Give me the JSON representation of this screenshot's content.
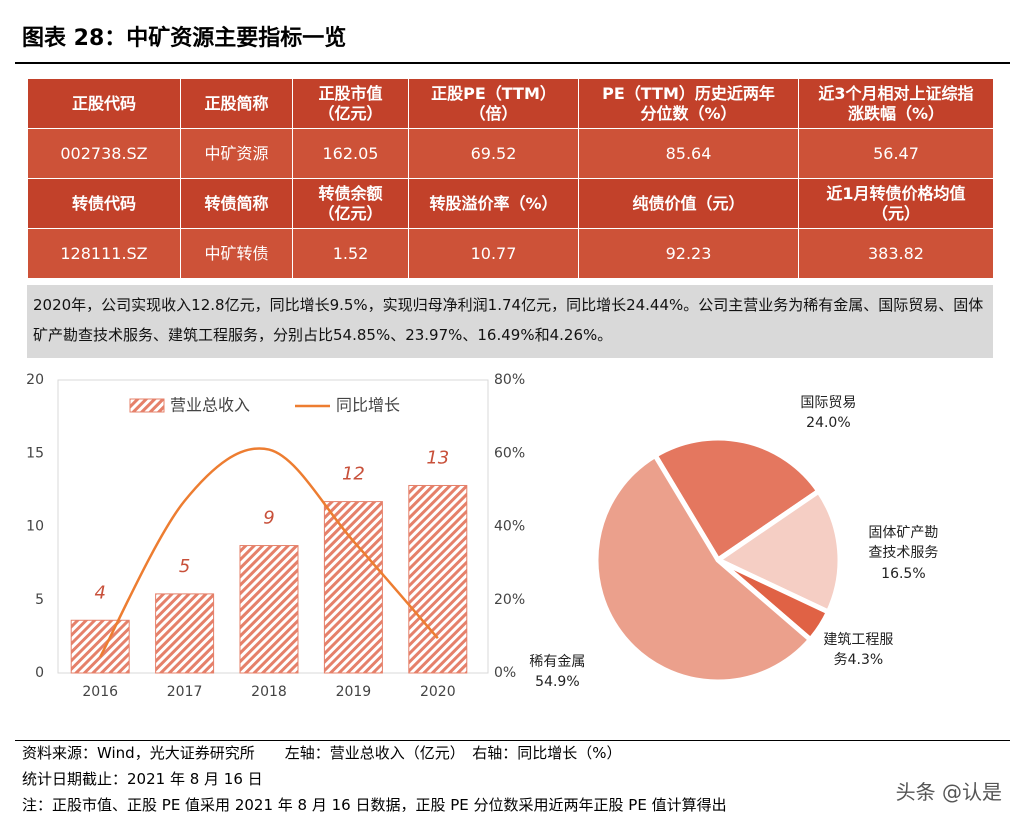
{
  "header": {
    "title": "图表 28：中矿资源主要指标一览"
  },
  "table": {
    "rows": [
      [
        "正股代码",
        "正股简称",
        "正股市值\n（亿元）",
        "正股PE（TTM）\n（倍）",
        "PE（TTM）历史近两年\n分位数（%）",
        "近3个月相对上证综指\n涨跌幅（%）"
      ],
      [
        "002738.SZ",
        "中矿资源",
        "162.05",
        "69.52",
        "85.64",
        "56.47"
      ],
      [
        "转债代码",
        "转债简称",
        "转债余额\n（亿元）",
        "转股溢价率（%）",
        "纯债价值（元）",
        "近1月转债价格均值\n（元）"
      ],
      [
        "128111.SZ",
        "中矿转债",
        "1.52",
        "10.77",
        "92.23",
        "383.82"
      ]
    ]
  },
  "summary": "2020年，公司实现收入12.8亿元，同比增长9.5%，实现归母净利润1.74亿元，同比增长24.44%。公司主营业务为稀有金属、国际贸易、固体矿产勘查技术服务、建筑工程服务，分别占比54.85%、23.97%、16.49%和4.26%。",
  "chart_data": [
    {
      "type": "bar-line",
      "categories": [
        "2016",
        "2017",
        "2018",
        "2019",
        "2020"
      ],
      "series": [
        {
          "name": "营业总收入",
          "color": "#e5806a",
          "values": [
            3.6,
            5.4,
            8.7,
            11.7,
            12.8
          ],
          "value_labels": [
            "4",
            "5",
            "9",
            "12",
            "13"
          ]
        },
        {
          "name": "同比增长",
          "color": "#ed7d31",
          "axis": "y2",
          "values": [
            4.4,
            47,
            61,
            36,
            9.5
          ]
        }
      ],
      "ylim": [
        0,
        20
      ],
      "yticks": [
        0,
        5,
        10,
        15,
        20
      ],
      "y2lim": [
        0,
        80
      ],
      "y2ticks": [
        {
          "value": 0,
          "label": "0%"
        },
        {
          "value": 20,
          "label": "20%"
        },
        {
          "value": 40,
          "label": "40%"
        },
        {
          "value": 60,
          "label": "60%"
        },
        {
          "value": 80,
          "label": "80%"
        }
      ],
      "grid": false,
      "legend": "top"
    },
    {
      "type": "pie",
      "categories": [
        "国际贸易",
        "固体矿产勘查技术服务",
        "建筑工程服务",
        "稀有金属"
      ],
      "values": [
        24.0,
        16.5,
        4.3,
        54.9
      ],
      "value_labels": [
        "24.0%",
        "16.5%",
        "4.3%",
        "54.9%"
      ],
      "colors": [
        "#e4775f",
        "#f5cec4",
        "#e06245",
        "#eba08c"
      ]
    }
  ],
  "footer": {
    "lines": [
      "资料来源：Wind，光大证券研究所　　左轴：营业总收入（亿元）　右轴：同比增长（%）",
      "统计日期截止：2021 年 8 月 16 日",
      "注：正股市值、正股 PE 值采用 2021 年 8 月 16 日数据，正股 PE 分位数采用近两年正股 PE 值计算得出"
    ]
  },
  "watermark": "头条 @认是"
}
